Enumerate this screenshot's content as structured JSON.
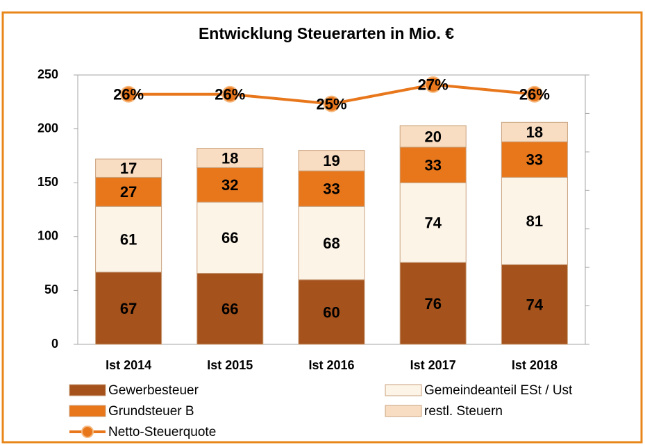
{
  "chart_data": {
    "type": "stacked_bar_line",
    "title": "Entwicklung Steuerarten in Mio. €",
    "categories": [
      "Ist 2014",
      "Ist 2015",
      "Ist 2016",
      "Ist 2017",
      "Ist 2018"
    ],
    "series": [
      {
        "name": "Gewerbesteuer",
        "color": "#a5521c",
        "values": [
          67,
          66,
          60,
          76,
          74
        ]
      },
      {
        "name": "Gemeindeanteil ESt / Ust",
        "color": "#fdf4e8",
        "values": [
          61,
          66,
          68,
          74,
          81
        ]
      },
      {
        "name": "Grundsteuer B",
        "color": "#e8771c",
        "values": [
          27,
          32,
          33,
          33,
          33
        ]
      },
      {
        "name": "restl. Steuern",
        "color": "#f8ddc2",
        "values": [
          17,
          18,
          19,
          20,
          18
        ]
      },
      {
        "name": "Netto-Steuerquote",
        "color": "#e8771c",
        "axis": "y2",
        "type": "line",
        "values": [
          26,
          26,
          25,
          27,
          26
        ],
        "value_labels": [
          "26%",
          "26%",
          "25%",
          "27%",
          "26%"
        ]
      }
    ],
    "ylim": [
      0,
      250
    ],
    "yticks": [
      0,
      50,
      100,
      150,
      200,
      250
    ],
    "y2lim": [
      0,
      28
    ],
    "y2ticks": [
      0,
      4,
      8,
      12,
      16,
      20,
      24,
      28
    ],
    "grid": false,
    "legend": "bottom"
  }
}
